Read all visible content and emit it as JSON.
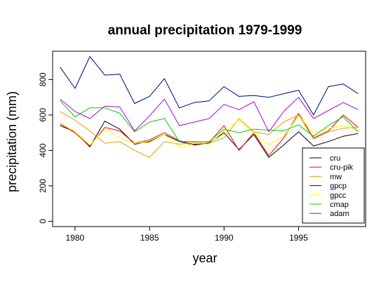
{
  "chart_data": {
    "type": "line",
    "title": "annual precipitation 1979-1999",
    "xlabel": "year",
    "ylabel": "precipitation (mm)",
    "xlim": [
      1978.5,
      1999.5
    ],
    "ylim": [
      -30,
      960
    ],
    "xticks": [
      1980,
      1985,
      1990,
      1995
    ],
    "yticks": [
      0,
      200,
      400,
      600,
      800
    ],
    "grid": false,
    "legend_position": "bottom-right",
    "x": [
      1979,
      1980,
      1981,
      1982,
      1983,
      1984,
      1985,
      1986,
      1987,
      1988,
      1989,
      1990,
      1991,
      1992,
      1993,
      1994,
      1995,
      1996,
      1997,
      1998,
      1999
    ],
    "series": [
      {
        "name": "cru",
        "color": "#000000",
        "values": [
          540,
          505,
          420,
          565,
          520,
          435,
          450,
          490,
          450,
          430,
          440,
          500,
          405,
          490,
          360,
          430,
          505,
          425,
          450,
          480,
          495
        ]
      },
      {
        "name": "cru-pik",
        "color": "#ff0000",
        "values": [
          550,
          500,
          425,
          530,
          510,
          440,
          460,
          500,
          455,
          435,
          445,
          540,
          400,
          500,
          370,
          470,
          610,
          470,
          510,
          600,
          530
        ]
      },
      {
        "name": "mw",
        "color": "#e69f00",
        "values": [
          620,
          570,
          510,
          440,
          450,
          400,
          360,
          450,
          435,
          445,
          440,
          470,
          580,
          505,
          490,
          560,
          600,
          465,
          505,
          525,
          530
        ]
      },
      {
        "name": "gpcp",
        "color": "#000080",
        "values": [
          870,
          750,
          930,
          825,
          830,
          665,
          705,
          805,
          640,
          670,
          680,
          760,
          705,
          710,
          700,
          720,
          740,
          600,
          760,
          775,
          720
        ]
      },
      {
        "name": "gpcc",
        "color": "#ffff00",
        "values": [
          560,
          505,
          430,
          520,
          470,
          440,
          445,
          490,
          415,
          440,
          435,
          510,
          570,
          500,
          430,
          480,
          595,
          500,
          525,
          540,
          515
        ]
      },
      {
        "name": "cmap",
        "color": "#00cc00",
        "values": [
          680,
          590,
          640,
          640,
          610,
          505,
          560,
          580,
          450,
          450,
          450,
          520,
          500,
          520,
          515,
          510,
          545,
          480,
          540,
          590,
          505
        ]
      },
      {
        "name": "adam",
        "color": "#b000e0",
        "values": [
          690,
          620,
          580,
          650,
          645,
          510,
          595,
          690,
          540,
          560,
          580,
          660,
          630,
          675,
          505,
          620,
          700,
          580,
          625,
          670,
          630
        ]
      }
    ]
  }
}
